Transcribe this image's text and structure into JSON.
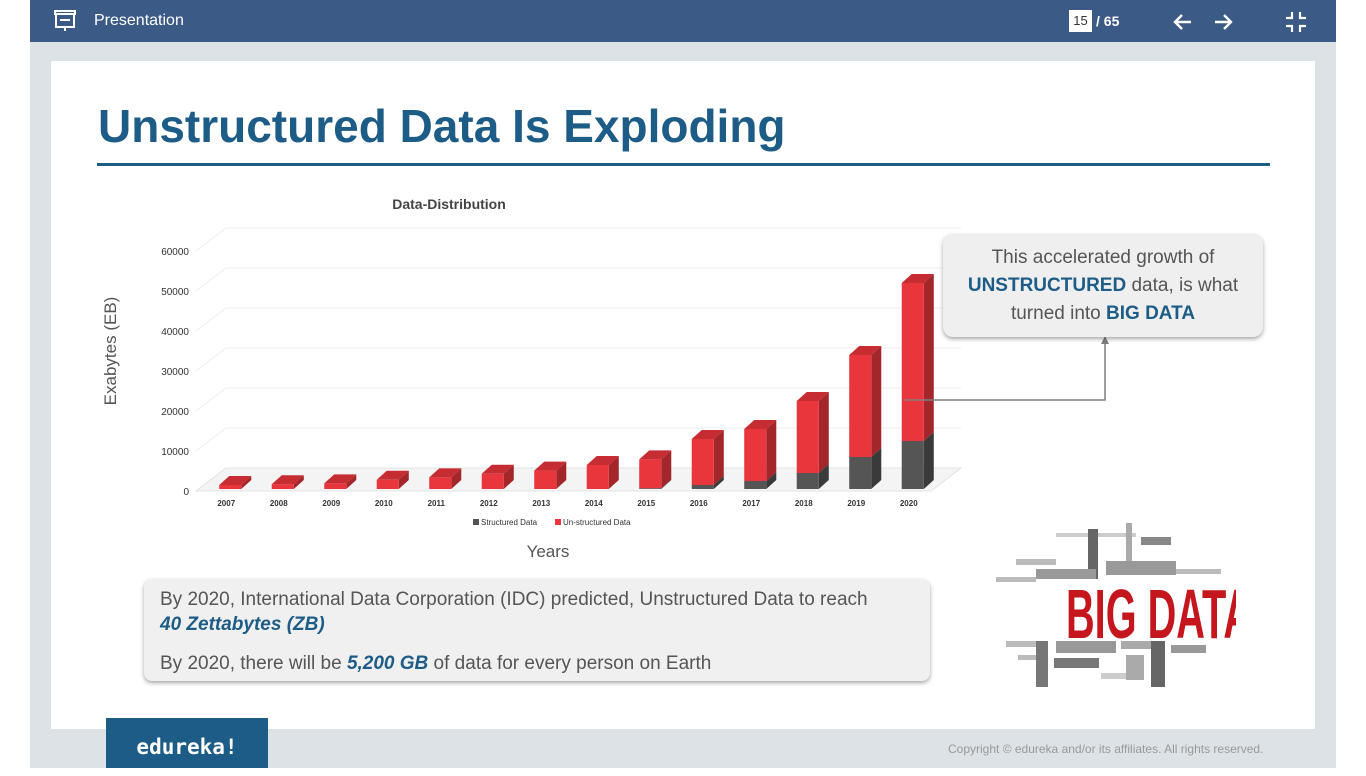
{
  "toolbar": {
    "title": "Presentation",
    "page_current": "15",
    "page_total": "/ 65"
  },
  "slide": {
    "title": "Unstructured Data Is Exploding",
    "callout": {
      "line1": "This accelerated growth of",
      "emph1": "UNSTRUCTURED",
      "line2": " data, is what",
      "line3": "turned into ",
      "emph2": "BIG DATA"
    },
    "info": {
      "p1_text": "By 2020, International Data Corporation (IDC) predicted, Unstructured Data to reach ",
      "p1_emph": "40 Zettabytes (ZB)",
      "p2_prefix": "By 2020, there will be ",
      "p2_emph": "5,200 GB",
      "p2_suffix": " of data for every person on Earth"
    },
    "image_text": "BIG DATA"
  },
  "footer": {
    "logo": "edureka!",
    "copyright": "Copyright © edureka and/or its affiliates. All rights reserved."
  },
  "colors": {
    "toolbar": "#3b5a86",
    "accent": "#1d5c86",
    "unstructured": "#e8363c",
    "structured": "#555555"
  },
  "icons": [
    "presentation-icon",
    "arrow-left-icon",
    "arrow-right-icon",
    "exit-fullscreen-icon"
  ],
  "chart_data": {
    "type": "bar",
    "title": "Data-Distribution",
    "xlabel": "Years",
    "ylabel": "Exabytes (EB)",
    "ylim": [
      0,
      60000
    ],
    "yticks": [
      "0",
      "10000",
      "20000",
      "30000",
      "40000",
      "50000",
      "60000"
    ],
    "categories": [
      "2007",
      "2008",
      "2009",
      "2010",
      "2011",
      "2012",
      "2013",
      "2014",
      "2015",
      "2016",
      "2017",
      "2018",
      "2019",
      "2020"
    ],
    "stacked": true,
    "legend_position": "bottom",
    "series": [
      {
        "name": "Structured Data",
        "values": [
          0,
          0,
          0,
          0,
          0,
          0,
          0,
          0,
          200,
          1000,
          2000,
          4000,
          8000,
          12000
        ]
      },
      {
        "name": "Un-structured Data",
        "values": [
          1000,
          1200,
          1400,
          2300,
          2900,
          3800,
          4600,
          6000,
          7200,
          11500,
          13000,
          18000,
          25500,
          39500
        ]
      }
    ]
  }
}
